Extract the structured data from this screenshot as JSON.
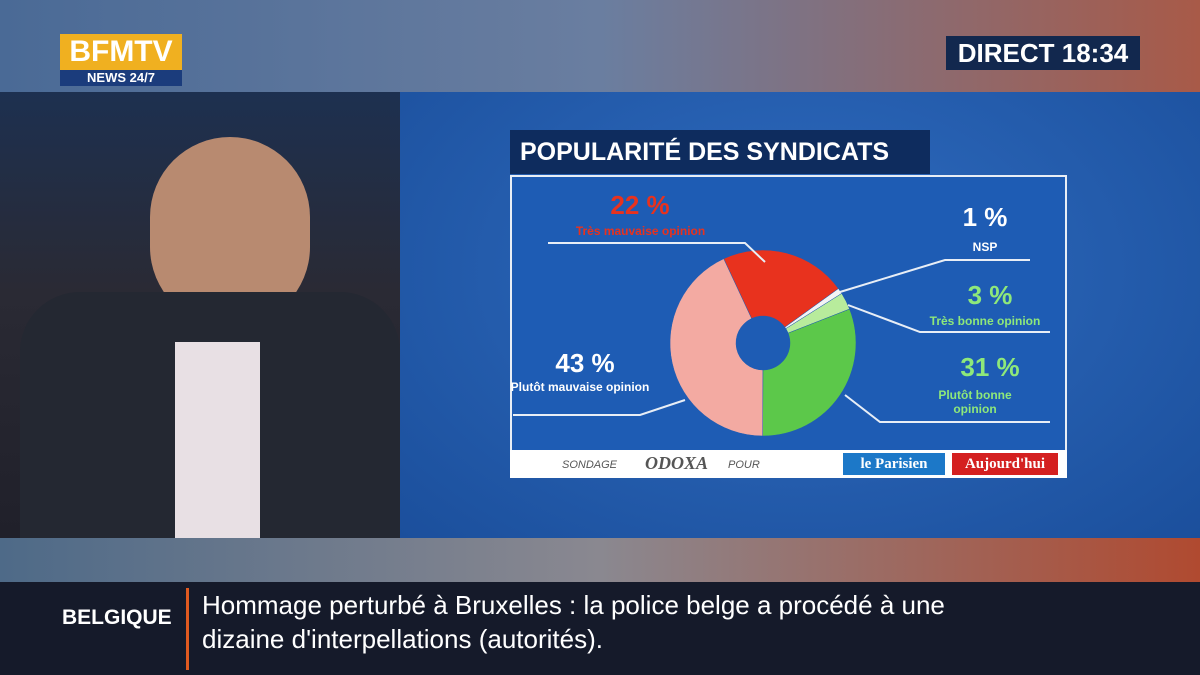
{
  "header": {
    "logo": "BFMTV",
    "logo_sub": "NEWS 24/7",
    "live": "DIRECT 18:34"
  },
  "chart_data": {
    "type": "pie",
    "title": "POPULARITÉ DES SYNDICATS",
    "categories": [
      "Très mauvaise opinion",
      "NSP",
      "Très bonne opinion",
      "Plutôt bonne opinion",
      "Plutôt mauvaise opinion"
    ],
    "values": [
      22,
      1,
      3,
      31,
      43
    ],
    "value_labels": [
      "22 %",
      "1 %",
      "3 %",
      "31 %",
      "43 %"
    ],
    "colors": [
      "#e8321e",
      "#f4f4f4",
      "#b8ec9c",
      "#5cc84a",
      "#f3aaa2"
    ]
  },
  "source": {
    "prefix": "SONDAGE",
    "pollster": "ODOXA",
    "middle": "POUR",
    "partner1": "le Parisien",
    "partner2": "Aujourd'hui"
  },
  "ticker": {
    "tag": "BELGIQUE",
    "lines": [
      "Hommage perturbé à Bruxelles : la police belge a procédé à une",
      "dizaine d'interpellations (autorités)."
    ]
  }
}
